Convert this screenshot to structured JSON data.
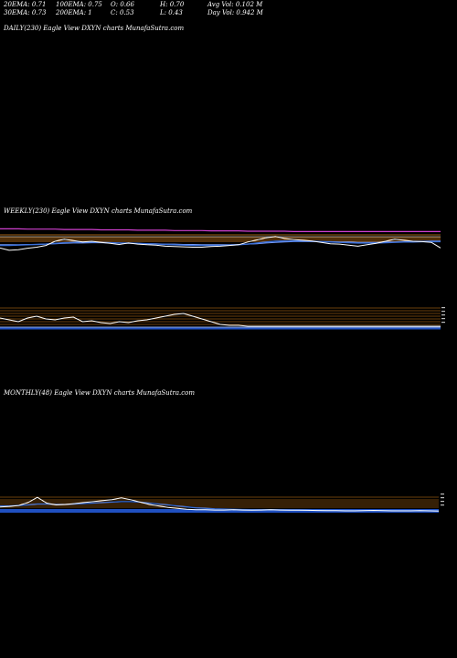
{
  "stats": {
    "ema20": "20EMA: 0.71",
    "ema30": "30EMA: 0.73",
    "ema100": "100EMA: 0.75",
    "ema200": "200EMA: 1",
    "open": "O: 0.66",
    "close": "C: 0.53",
    "high": "H: 0.70",
    "low": "L: 0.43",
    "avg_vol": "Avg Vol: 0.102  M",
    "day_vol": "Day Vol: 0.942  M"
  },
  "panels": {
    "daily": "DAILY(230) Eagle   View  DXYN  charts MunafaSutra.com",
    "weekly": "WEEKLY(230) Eagle   View  DXYN  charts MunafaSutra.com",
    "monthly": "MONTHLY(48) Eagle   View  DXYN  charts MunafaSutra.com"
  },
  "colors": {
    "price": "#ffffff",
    "ema_blue": "#3a6fd8",
    "ema_magenta": "#d040d0",
    "ema_orange": "#d8801a",
    "volume": "#2050c0"
  },
  "chart_data": [
    {
      "type": "line",
      "title": "DAILY(230) Eagle   View  DXYN  charts MunafaSutra.com",
      "x": [],
      "series": []
    },
    {
      "type": "line",
      "title": "WEEKLY(230) Eagle   View  DXYN  charts MunafaSutra.com",
      "x": [
        0,
        1,
        2,
        3,
        4,
        5,
        6,
        7,
        8,
        9,
        10,
        11,
        12,
        13,
        14,
        15,
        16,
        17,
        18,
        19,
        20,
        21,
        22,
        23,
        24,
        25,
        26,
        27,
        28,
        29,
        30,
        31,
        32,
        33,
        34,
        35,
        36,
        37,
        38,
        39,
        40,
        41,
        42,
        43,
        44,
        45,
        46,
        47,
        48
      ],
      "series": [
        {
          "values": [
            0.53,
            0.46,
            0.48,
            0.52,
            0.55,
            0.6,
            0.72,
            0.78,
            0.74,
            0.7,
            0.72,
            0.69,
            0.66,
            0.63,
            0.67,
            0.64,
            0.62,
            0.61,
            0.58,
            0.57,
            0.56,
            0.55,
            0.55,
            0.57,
            0.58,
            0.6,
            0.62,
            0.7,
            0.76,
            0.82,
            0.86,
            0.8,
            0.77,
            0.75,
            0.73,
            0.69,
            0.65,
            0.64,
            0.61,
            0.58,
            0.62,
            0.66,
            0.72,
            0.78,
            0.75,
            0.72,
            0.71,
            0.69,
            0.53
          ]
        },
        {
          "values": [
            0.6,
            0.6,
            0.61,
            0.62,
            0.63,
            0.64,
            0.66,
            0.68,
            0.69,
            0.7,
            0.7,
            0.69,
            0.68,
            0.67,
            0.67,
            0.66,
            0.65,
            0.64,
            0.63,
            0.62,
            0.61,
            0.6,
            0.6,
            0.6,
            0.6,
            0.61,
            0.62,
            0.64,
            0.67,
            0.7,
            0.72,
            0.73,
            0.73,
            0.73,
            0.72,
            0.71,
            0.7,
            0.69,
            0.68,
            0.67,
            0.67,
            0.67,
            0.68,
            0.69,
            0.7,
            0.7,
            0.71,
            0.71,
            0.71
          ]
        },
        {
          "values": [
            0.62,
            0.62,
            0.62,
            0.63,
            0.63,
            0.64,
            0.65,
            0.66,
            0.67,
            0.67,
            0.68,
            0.68,
            0.67,
            0.67,
            0.66,
            0.66,
            0.65,
            0.65,
            0.64,
            0.64,
            0.63,
            0.63,
            0.62,
            0.62,
            0.62,
            0.62,
            0.63,
            0.64,
            0.65,
            0.67,
            0.69,
            0.7,
            0.71,
            0.71,
            0.71,
            0.71,
            0.71,
            0.7,
            0.7,
            0.69,
            0.69,
            0.69,
            0.7,
            0.7,
            0.71,
            0.72,
            0.72,
            0.73,
            0.73
          ]
        },
        {
          "values": [
            1.08,
            1.08,
            1.08,
            1.07,
            1.07,
            1.07,
            1.07,
            1.06,
            1.06,
            1.06,
            1.06,
            1.05,
            1.05,
            1.05,
            1.05,
            1.04,
            1.04,
            1.04,
            1.04,
            1.03,
            1.03,
            1.03,
            1.03,
            1.02,
            1.02,
            1.02,
            1.02,
            1.01,
            1.01,
            1.01,
            1.01,
            1.01,
            1.0,
            1.0,
            1.0,
            1.0,
            1.0,
            1.0,
            1.0,
            1.0,
            1.0,
            1.0,
            1.0,
            1.0,
            1.0,
            1.0,
            1.0,
            1.0,
            1.0
          ]
        }
      ],
      "ylim": [
        0.3,
        1.3
      ]
    },
    {
      "type": "line",
      "title": "MONTHLY(48) Eagle   View  DXYN  charts MunafaSutra.com",
      "x": [
        0,
        1,
        2,
        3,
        4,
        5,
        6,
        7,
        8,
        9,
        10,
        11,
        12,
        13,
        14,
        15,
        16,
        17,
        18,
        19,
        20,
        21,
        22,
        23,
        24,
        25,
        26,
        27,
        28,
        29,
        30,
        31,
        32,
        33,
        34,
        35,
        36,
        37,
        38,
        39,
        40,
        41,
        42,
        43,
        44,
        45,
        46,
        47
      ],
      "series": [
        {
          "values": [
            1.4,
            1.5,
            1.7,
            2.3,
            3.4,
            2.2,
            1.8,
            1.9,
            2.1,
            2.3,
            2.5,
            2.7,
            2.9,
            3.3,
            2.9,
            2.4,
            1.9,
            1.6,
            1.3,
            1.1,
            0.9,
            0.8,
            0.8,
            0.75,
            0.75,
            0.8,
            0.75,
            0.7,
            0.75,
            0.8,
            0.75,
            0.72,
            0.7,
            0.68,
            0.65,
            0.62,
            0.6,
            0.58,
            0.57,
            0.6,
            0.66,
            0.62,
            0.58,
            0.57,
            0.58,
            0.6,
            0.58,
            0.53
          ]
        },
        {
          "values": [
            1.6,
            1.6,
            1.7,
            1.8,
            2.0,
            2.0,
            1.9,
            1.9,
            2.0,
            2.1,
            2.2,
            2.3,
            2.4,
            2.5,
            2.5,
            2.4,
            2.2,
            2.0,
            1.8,
            1.6,
            1.4,
            1.2,
            1.1,
            1.0,
            0.95,
            0.9,
            0.85,
            0.82,
            0.8,
            0.8,
            0.78,
            0.77,
            0.75,
            0.74,
            0.72,
            0.7,
            0.68,
            0.66,
            0.64,
            0.64,
            0.64,
            0.63,
            0.62,
            0.61,
            0.61,
            0.61,
            0.6,
            0.6
          ]
        }
      ],
      "ylim": [
        0,
        8
      ]
    }
  ]
}
